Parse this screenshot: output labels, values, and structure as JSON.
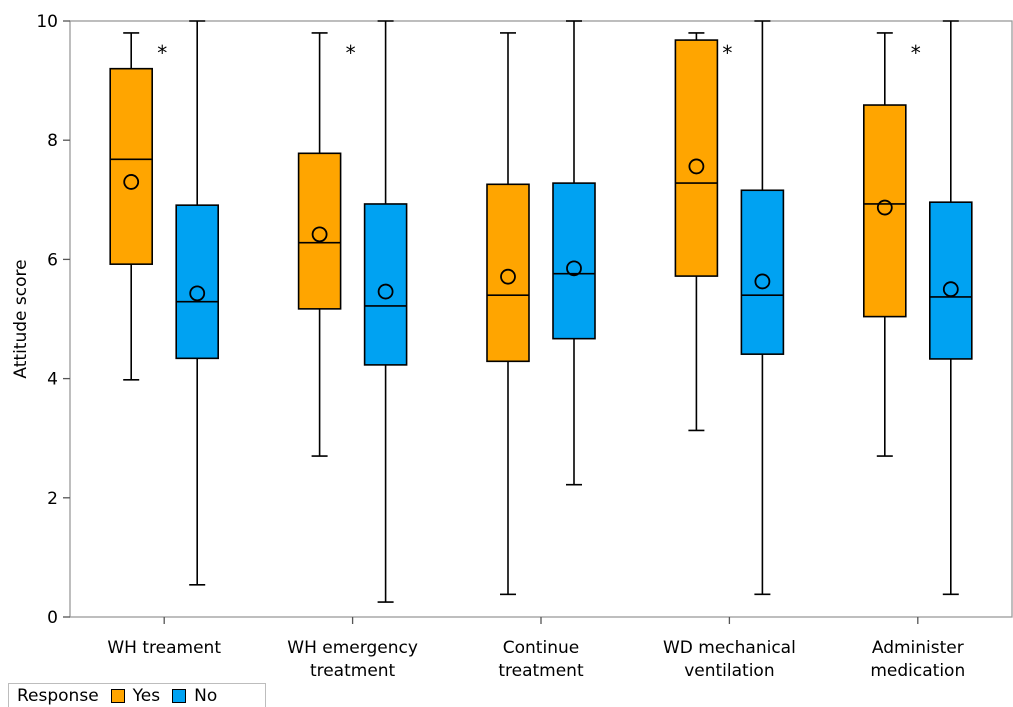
{
  "chart_data": {
    "type": "box",
    "title": "",
    "xlabel": "",
    "ylabel": "Attitude score",
    "ylim": [
      0,
      10
    ],
    "yticks": [
      "0",
      "2",
      "4",
      "6",
      "8",
      "10"
    ],
    "categories": [
      {
        "lines": [
          "WH treament"
        ],
        "significant": true
      },
      {
        "lines": [
          "WH emergency",
          "treatment"
        ],
        "significant": true
      },
      {
        "lines": [
          "Continue",
          "treatment"
        ],
        "significant": false
      },
      {
        "lines": [
          "WD mechanical",
          "ventilation"
        ],
        "significant": true
      },
      {
        "lines": [
          "Administer",
          "medication"
        ],
        "significant": true
      }
    ],
    "significance_marker": "*",
    "series": [
      {
        "name": "Yes",
        "color": "#FFA500",
        "boxes": [
          {
            "min": 3.98,
            "q1": 5.92,
            "median": 7.68,
            "q3": 9.2,
            "max": 9.8,
            "mean": 7.3
          },
          {
            "min": 2.7,
            "q1": 5.17,
            "median": 6.28,
            "q3": 7.78,
            "max": 9.8,
            "mean": 6.42
          },
          {
            "min": 0.38,
            "q1": 4.29,
            "median": 5.4,
            "q3": 7.26,
            "max": 9.8,
            "mean": 5.71
          },
          {
            "min": 3.13,
            "q1": 5.72,
            "median": 7.28,
            "q3": 9.68,
            "max": 9.8,
            "mean": 7.56
          },
          {
            "min": 2.7,
            "q1": 5.04,
            "median": 6.93,
            "q3": 8.59,
            "max": 9.8,
            "mean": 6.87
          }
        ]
      },
      {
        "name": "No",
        "color": "#00A2F2",
        "boxes": [
          {
            "min": 0.54,
            "q1": 4.34,
            "median": 5.29,
            "q3": 6.91,
            "max": 10.0,
            "mean": 5.43
          },
          {
            "min": 0.25,
            "q1": 4.23,
            "median": 5.22,
            "q3": 6.93,
            "max": 10.0,
            "mean": 5.46
          },
          {
            "min": 2.22,
            "q1": 4.67,
            "median": 5.76,
            "q3": 7.28,
            "max": 10.0,
            "mean": 5.85
          },
          {
            "min": 0.38,
            "q1": 4.41,
            "median": 5.4,
            "q3": 7.16,
            "max": 10.0,
            "mean": 5.63
          },
          {
            "min": 0.38,
            "q1": 4.33,
            "median": 5.37,
            "q3": 6.96,
            "max": 10.0,
            "mean": 5.5
          }
        ]
      }
    ],
    "legend": {
      "title": "Response",
      "position": "bottom-left"
    }
  }
}
